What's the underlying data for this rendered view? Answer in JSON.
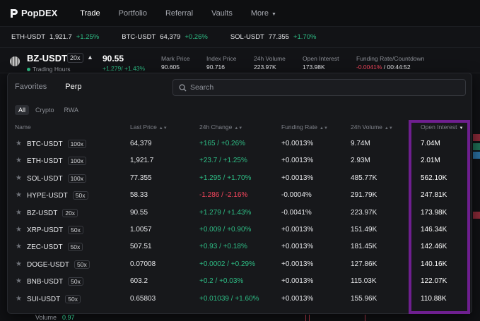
{
  "app": {
    "name": "PopDEX"
  },
  "nav": [
    {
      "label": "Trade",
      "active": true
    },
    {
      "label": "Portfolio",
      "active": false
    },
    {
      "label": "Referral",
      "active": false
    },
    {
      "label": "Vaults",
      "active": false
    },
    {
      "label": "More",
      "active": false
    }
  ],
  "ticker": [
    {
      "symbol": "ETH-USDT",
      "price": "1,921.7",
      "change": "+1.25%"
    },
    {
      "symbol": "BTC-USDT",
      "price": "64,379",
      "change": "+0.26%"
    },
    {
      "symbol": "SOL-USDT",
      "price": "77.355",
      "change": "+1.70%"
    }
  ],
  "market": {
    "symbol": "BZ-USDT",
    "leverage": "20x",
    "status": "Trading Hours",
    "price": "90.55",
    "change": "+1.279/ +1.43%",
    "stats": [
      {
        "label": "Mark Price",
        "value": "90.605"
      },
      {
        "label": "Index Price",
        "value": "90.716"
      },
      {
        "label": "24h Volume",
        "value": "223.97K"
      },
      {
        "label": "Open Interest",
        "value": "173.98K"
      }
    ],
    "funding": {
      "label": "Funding Rate/Countdown",
      "rate": "-0.0041%",
      "countdown": " / 00:44:52"
    }
  },
  "panel": {
    "tabs": [
      {
        "label": "Favorites",
        "active": false
      },
      {
        "label": "Perp",
        "active": true
      }
    ],
    "search_placeholder": "Search",
    "filters": [
      {
        "label": "All",
        "active": true
      },
      {
        "label": "Crypto",
        "active": false
      },
      {
        "label": "RWA",
        "active": false
      }
    ],
    "columns": {
      "name": "Name",
      "last_price": "Last Price",
      "change": "24h Change",
      "funding": "Funding Rate",
      "volume": "24h Volume",
      "oi": "Open Interest"
    },
    "rows": [
      {
        "name": "BTC-USDT",
        "lev": "100x",
        "price": "64,379",
        "change": "+165 / +0.26%",
        "dir": "up",
        "funding": "+0.0013%",
        "volume": "9.74M",
        "oi": "7.04M"
      },
      {
        "name": "ETH-USDT",
        "lev": "100x",
        "price": "1,921.7",
        "change": "+23.7 / +1.25%",
        "dir": "up",
        "funding": "+0.0013%",
        "volume": "2.93M",
        "oi": "2.01M"
      },
      {
        "name": "SOL-USDT",
        "lev": "100x",
        "price": "77.355",
        "change": "+1.295 / +1.70%",
        "dir": "up",
        "funding": "+0.0013%",
        "volume": "485.77K",
        "oi": "562.10K"
      },
      {
        "name": "HYPE-USDT",
        "lev": "50x",
        "price": "58.33",
        "change": "-1.286 / -2.16%",
        "dir": "down",
        "funding": "-0.0004%",
        "volume": "291.79K",
        "oi": "247.81K"
      },
      {
        "name": "BZ-USDT",
        "lev": "20x",
        "price": "90.55",
        "change": "+1.279 / +1.43%",
        "dir": "up",
        "funding": "-0.0041%",
        "volume": "223.97K",
        "oi": "173.98K"
      },
      {
        "name": "XRP-USDT",
        "lev": "50x",
        "price": "1.0057",
        "change": "+0.009 / +0.90%",
        "dir": "up",
        "funding": "+0.0013%",
        "volume": "151.49K",
        "oi": "146.34K"
      },
      {
        "name": "ZEC-USDT",
        "lev": "50x",
        "price": "507.51",
        "change": "+0.93 / +0.18%",
        "dir": "up",
        "funding": "+0.0013%",
        "volume": "181.45K",
        "oi": "142.46K"
      },
      {
        "name": "DOGE-USDT",
        "lev": "50x",
        "price": "0.07008",
        "change": "+0.0002 / +0.29%",
        "dir": "up",
        "funding": "+0.0013%",
        "volume": "127.86K",
        "oi": "140.16K"
      },
      {
        "name": "BNB-USDT",
        "lev": "50x",
        "price": "603.2",
        "change": "+0.2 / +0.03%",
        "dir": "up",
        "funding": "+0.0013%",
        "volume": "115.03K",
        "oi": "122.07K"
      },
      {
        "name": "SUI-USDT",
        "lev": "50x",
        "price": "0.65803",
        "change": "+0.01039 / +1.60%",
        "dir": "up",
        "funding": "+0.0013%",
        "volume": "155.96K",
        "oi": "110.88K"
      }
    ]
  },
  "footer": {
    "volume_label": "Volume",
    "volume_value": "0.97"
  },
  "colors": {
    "up": "#2ebd85",
    "down": "#f6465d",
    "highlight": "#6e1f8f"
  }
}
